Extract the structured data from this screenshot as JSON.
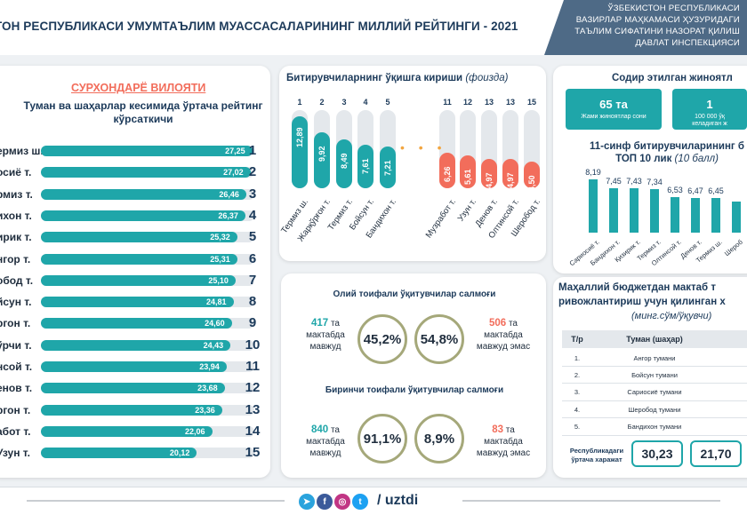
{
  "header": {
    "title": "ТОН РЕСПУБЛИКАСИ УМУМТАЪЛИМ МУАССАСАЛАРИНИНГ МИЛЛИЙ РЕЙТИНГИ - 2021",
    "ministry_lines": [
      "ЎЗБЕКИСТОН РЕСПУБЛИКАСИ",
      "ВАЗИРЛАР МАҲКАМАСИ ҲУЗУРИДАГИ",
      "ТАЪЛИМ СИФАТИНИ НАЗОРАТ ҚИЛИШ",
      "ДАВЛАТ ИНСПЕКЦИЯСИ"
    ]
  },
  "left": {
    "region": "СУРХОНДАРЁ ВИЛОЯТИ",
    "title": "Туман ва шаҳарлар кесимида ўртача рейтинг кўрсаткичи",
    "rows": [
      {
        "name": "ермиз ш.",
        "value": "27,25",
        "rank": "1",
        "frac": 0.99
      },
      {
        "name": "осиё т.",
        "value": "27,02",
        "rank": "2",
        "frac": 0.982
      },
      {
        "name": "рмиз т.",
        "value": "26,46",
        "rank": "3",
        "frac": 0.962
      },
      {
        "name": "ихон т.",
        "value": "26,37",
        "rank": "4",
        "frac": 0.958
      },
      {
        "name": "ирик т.",
        "value": "25,32",
        "rank": "5",
        "frac": 0.92
      },
      {
        "name": "нгор т.",
        "value": "25,31",
        "rank": "6",
        "frac": 0.92
      },
      {
        "name": "обод т.",
        "value": "25,10",
        "rank": "7",
        "frac": 0.912
      },
      {
        "name": "йсун т.",
        "value": "24,81",
        "rank": "8",
        "frac": 0.902
      },
      {
        "name": "ргон т.",
        "value": "24,60",
        "rank": "9",
        "frac": 0.894
      },
      {
        "name": "ўрчи т.",
        "value": "24,43",
        "rank": "10",
        "frac": 0.888
      },
      {
        "name": "нсой т.",
        "value": "23,94",
        "rank": "11",
        "frac": 0.87
      },
      {
        "name": "енов т.",
        "value": "23,68",
        "rank": "12",
        "frac": 0.861
      },
      {
        "name": "ргон т.",
        "value": "23,36",
        "rank": "13",
        "frac": 0.849
      },
      {
        "name": "абот т.",
        "value": "22,06",
        "rank": "14",
        "frac": 0.802
      },
      {
        "name": "Узун т.",
        "value": "20,12",
        "rank": "15",
        "frac": 0.731
      }
    ]
  },
  "middle": {
    "title": "Битирувчиларнинг ўқишга кириши",
    "title_unit": "(фоизда)",
    "dots": "• • •",
    "bars": [
      {
        "rank": "1",
        "value": "12,89",
        "name": "Термиз ш.",
        "color": "#1fa6a9",
        "frac": 0.92
      },
      {
        "rank": "2",
        "value": "9,92",
        "name": "Жарқўрғон т.",
        "color": "#1fa6a9",
        "frac": 0.72
      },
      {
        "rank": "3",
        "value": "8,49",
        "name": "Термиз т.",
        "color": "#1fa6a9",
        "frac": 0.62
      },
      {
        "rank": "4",
        "value": "7,61",
        "name": "Бойсун т.",
        "color": "#1fa6a9",
        "frac": 0.56
      },
      {
        "rank": "5",
        "value": "7,21",
        "name": "Бандихон т.",
        "color": "#1fa6a9",
        "frac": 0.53
      },
      {
        "rank": "11",
        "value": "6,26",
        "name": "Музработ т.",
        "color": "#f26d5b",
        "frac": 0.46
      },
      {
        "rank": "12",
        "value": "5,61",
        "name": "Узун т.",
        "color": "#f26d5b",
        "frac": 0.42
      },
      {
        "rank": "13",
        "value": "4,97",
        "name": "Денов т.",
        "color": "#f26d5b",
        "frac": 0.38
      },
      {
        "rank": "13",
        "value": "4,97",
        "name": "Олтинсой т.",
        "color": "#f26d5b",
        "frac": 0.38
      },
      {
        "rank": "15",
        "value": "4,50",
        "name": "Шеробод т.",
        "color": "#f26d5b",
        "frac": 0.34
      }
    ]
  },
  "teachers": {
    "higher_title": "Олий тоифали ўқитувчилар салмоғи",
    "higher_left_num": "417",
    "higher_left_unit": "та",
    "higher_left_text1": "мактабда",
    "higher_left_text2": "мавжуд",
    "higher_pct_a": "45,2%",
    "higher_pct_b": "54,8%",
    "higher_right_num": "506",
    "higher_right_unit": "та",
    "higher_right_text1": "мактабда",
    "higher_right_text2": "мавжуд эмас",
    "first_title": "Биринчи тоифали ўқитувчилар салмоғи",
    "first_left_num": "840",
    "first_left_unit": "та",
    "first_left_text1": "мактабда",
    "first_left_text2": "мавжуд",
    "first_pct_a": "91,1%",
    "first_pct_b": "8,9%",
    "first_right_num": "83",
    "first_right_unit": "та",
    "first_right_text1": "мактабда",
    "first_right_text2": "мавжуд эмас"
  },
  "right": {
    "crime_title": "Содир этилган жиноятл",
    "crime_box1_num": "65 та",
    "crime_box1_label": "Жами жиноятлар сони",
    "crime_box2_num": "1",
    "crime_box2_label1": "100 000 ўқ",
    "crime_box2_label2": "келадиган ж",
    "top10_title1": "11-синф битирувчиларининг б",
    "top10_title2": "ТОП 10 лик",
    "top10_unit": "(10 балл)",
    "top10": [
      {
        "value": "8,19",
        "name": "Сариосиё т.",
        "frac": 0.86
      },
      {
        "value": "7,45",
        "name": "Бандихон т.",
        "frac": 0.72
      },
      {
        "value": "7,43",
        "name": "Қизирик т.",
        "frac": 0.71
      },
      {
        "value": "7,34",
        "name": "Термиз т.",
        "frac": 0.7
      },
      {
        "value": "6,53",
        "name": "Олтинсой т.",
        "frac": 0.57
      },
      {
        "value": "6,47",
        "name": "Денов т.",
        "frac": 0.56
      },
      {
        "value": "6,45",
        "name": "Термиз ш.",
        "frac": 0.56
      },
      {
        "value": "",
        "name": "Шероб",
        "frac": 0.5
      },
      {
        "value": "",
        "name": "Жа",
        "frac": 0.48
      }
    ],
    "budget_title1": "Маҳаллий бюджетдан мактаб т",
    "budget_title2": "ривожлантириш учун қилинган х",
    "budget_unit": "(минг.сўм/ўқувчи)",
    "table_head_num": "Т/р",
    "table_head_name": "Туман (шаҳар)",
    "table_rows": [
      {
        "num": "1.",
        "name": "Ангор тумани"
      },
      {
        "num": "2.",
        "name": "Бойсун тумани"
      },
      {
        "num": "3.",
        "name": "Сариосиё тумани"
      },
      {
        "num": "4.",
        "name": "Шеробод тумани"
      },
      {
        "num": "5.",
        "name": "Бандихон тумани"
      }
    ],
    "sum_label": "Республикадаги ўртача харажат",
    "sum_value1": "30,23",
    "sum_value2": "21,70"
  },
  "footer": {
    "handle": "/ uztdi",
    "icons": [
      {
        "name": "telegram-icon",
        "glyph": "➤",
        "color": "#2aa3dd"
      },
      {
        "name": "facebook-icon",
        "glyph": "f",
        "color": "#3b5a9a"
      },
      {
        "name": "instagram-icon",
        "glyph": "◎",
        "color": "#c13584"
      },
      {
        "name": "twitter-icon",
        "glyph": "t",
        "color": "#1da1f2"
      }
    ]
  }
}
